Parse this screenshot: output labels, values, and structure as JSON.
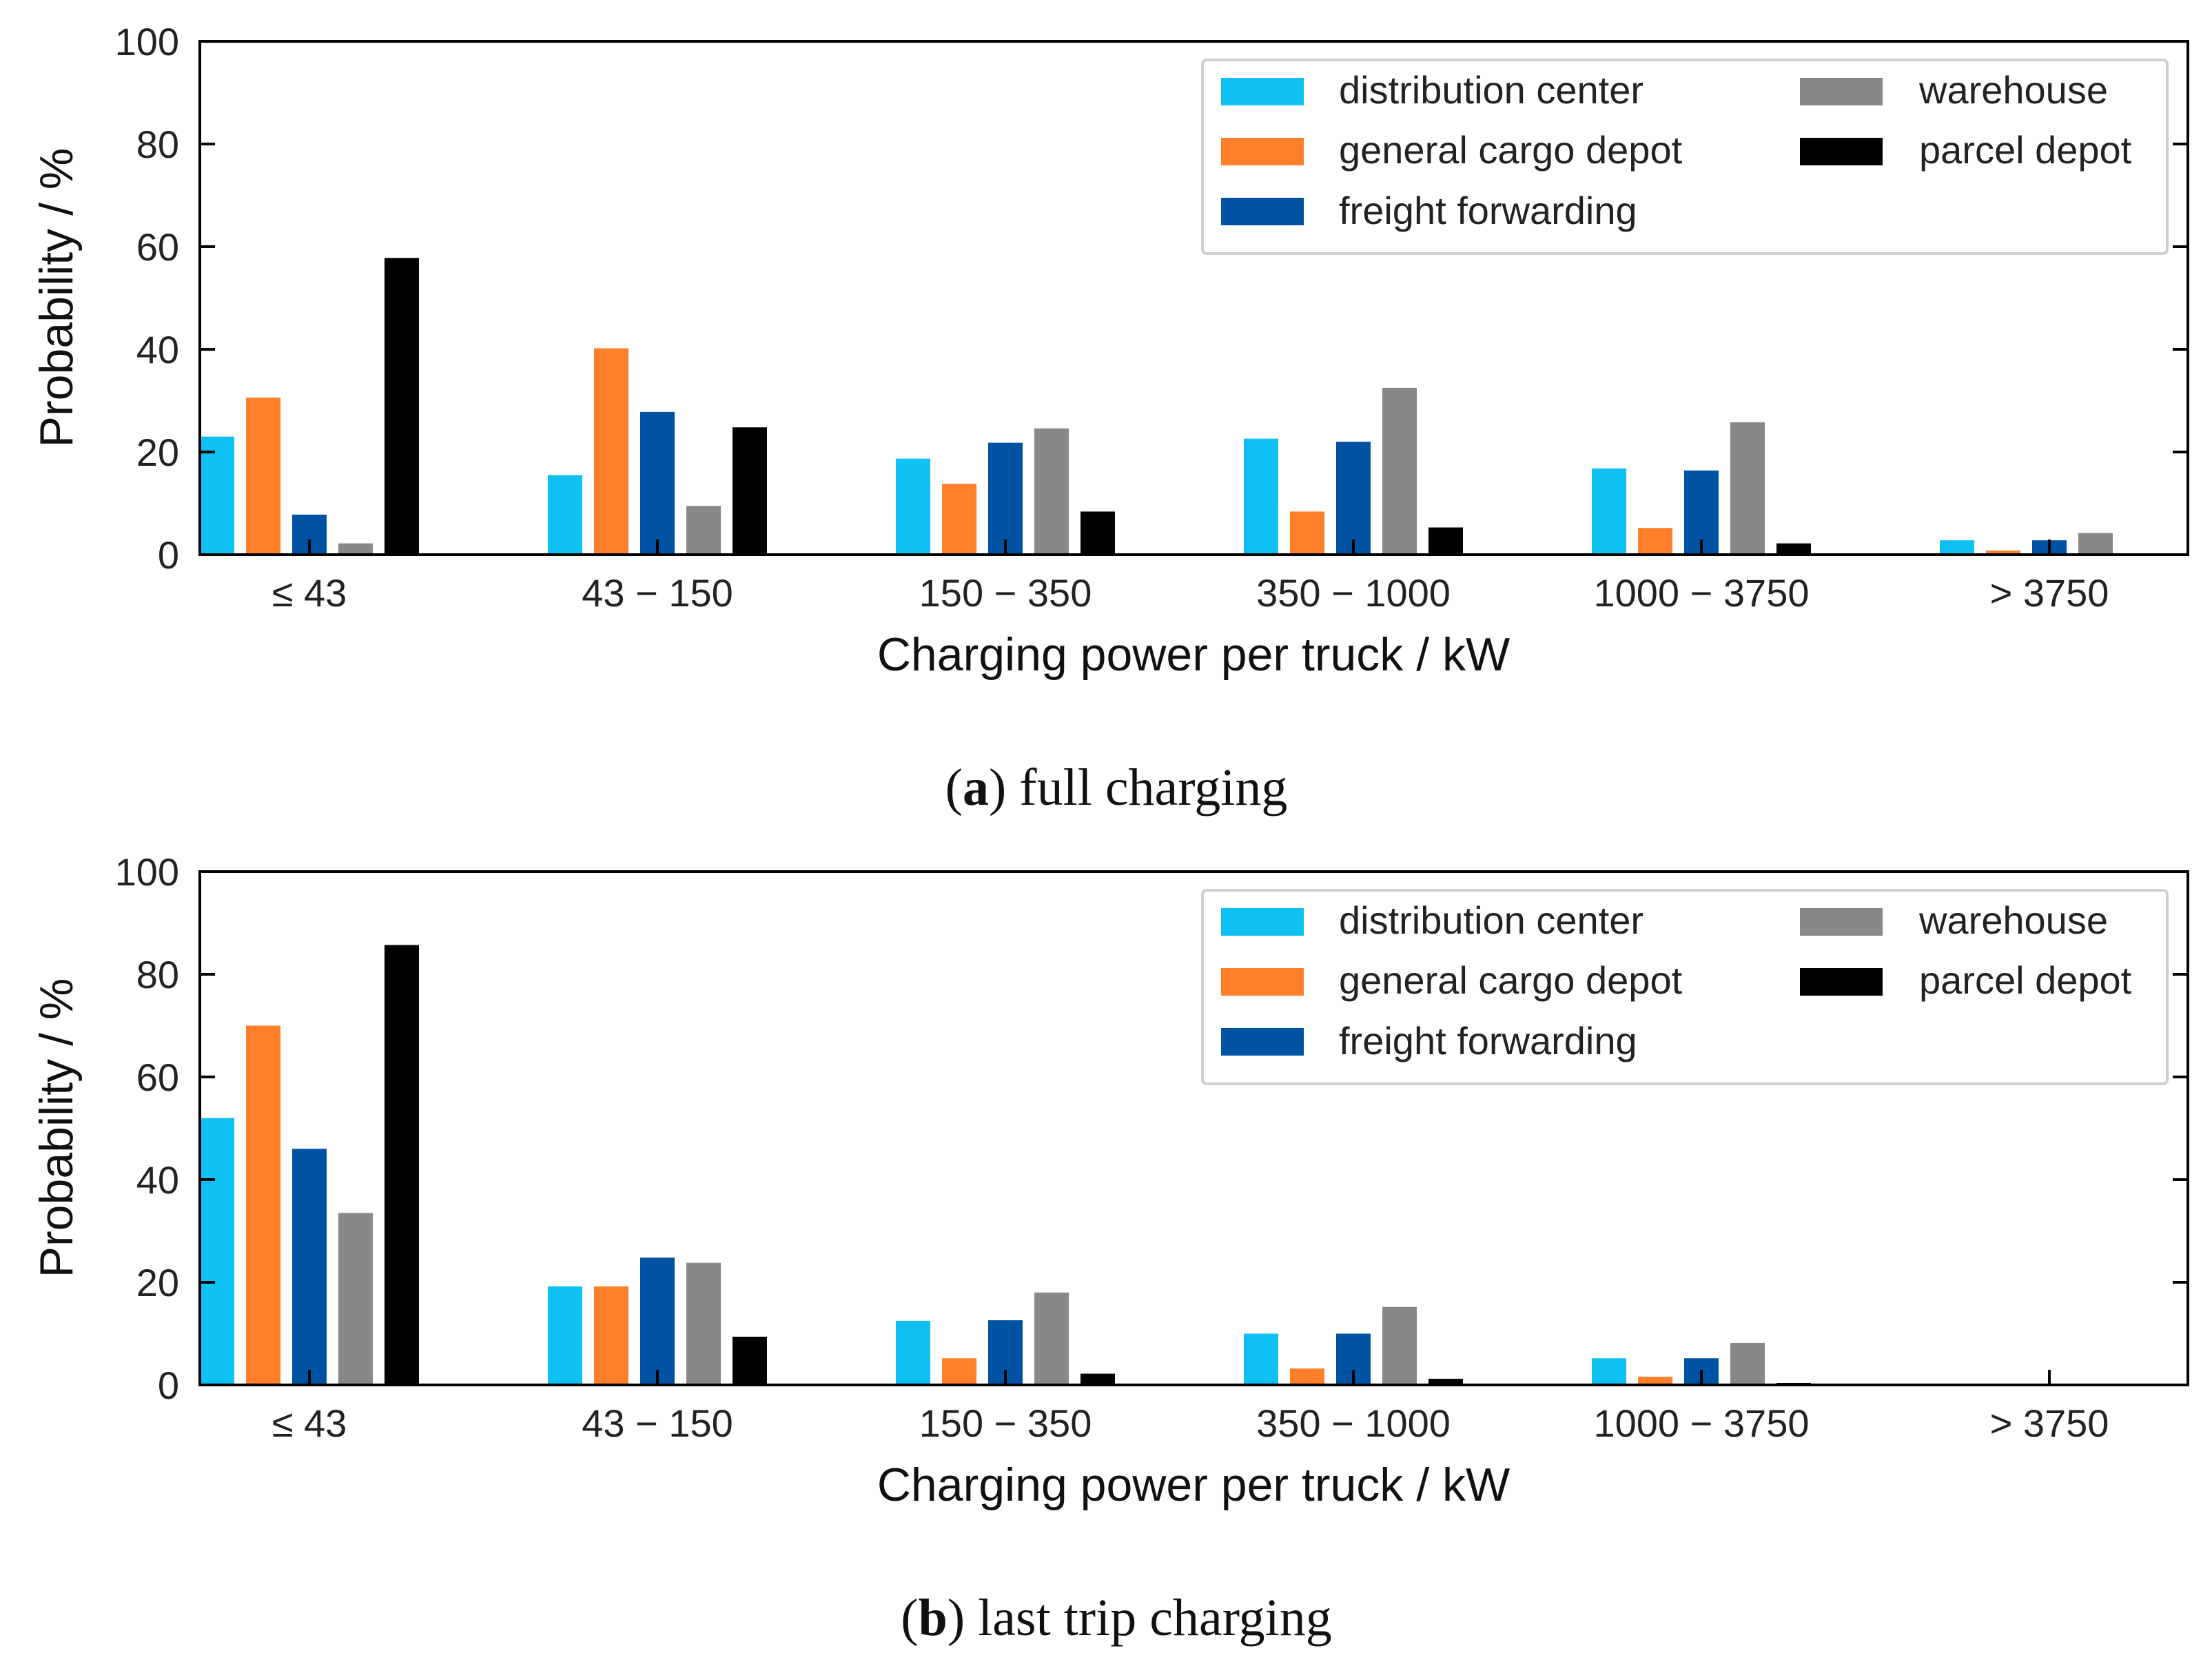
{
  "colors": {
    "distribution center": "#0fc0f2",
    "general cargo depot": "#ff7f2a",
    "freight forwarding": "#0052a3",
    "warehouse": "#888888",
    "parcel depot": "#000000"
  },
  "chart_data": [
    {
      "type": "bar",
      "title": "",
      "xlabel": "Charging power per truck / kW",
      "ylabel": "Probability / %",
      "ylim": [
        0,
        100
      ],
      "yticks": [
        "0",
        "20",
        "40",
        "60",
        "80",
        "100"
      ],
      "categories": [
        "≤ 43",
        "43 − 150",
        "150 − 350",
        "350 − 1000",
        "1000 − 3750",
        "> 3750"
      ],
      "series": [
        {
          "name": "distribution center",
          "values": [
            23,
            15.5,
            18.7,
            22.6,
            16.8,
            2.8
          ]
        },
        {
          "name": "general cargo depot",
          "values": [
            30.6,
            40.2,
            13.8,
            8.4,
            5.2,
            0.8
          ]
        },
        {
          "name": "freight forwarding",
          "values": [
            7.8,
            27.8,
            21.8,
            22,
            16.4,
            2.8
          ]
        },
        {
          "name": "warehouse",
          "values": [
            2.2,
            9.5,
            24.6,
            32.5,
            25.8,
            4.2
          ]
        },
        {
          "name": "parcel depot",
          "values": [
            57.8,
            24.8,
            8.4,
            5.3,
            2.2,
            0
          ]
        }
      ],
      "legend": {
        "position": "top-right",
        "columns": [
          [
            "distribution center",
            "general cargo depot",
            "freight forwarding"
          ],
          [
            "warehouse",
            "parcel depot"
          ]
        ]
      },
      "caption": {
        "label": "a",
        "text": "full charging"
      }
    },
    {
      "type": "bar",
      "title": "",
      "xlabel": "Charging power per truck / kW",
      "ylabel": "Probability / %",
      "ylim": [
        0,
        100
      ],
      "yticks": [
        "0",
        "20",
        "40",
        "60",
        "80",
        "100"
      ],
      "categories": [
        "≤ 43",
        "43 − 150",
        "150 − 350",
        "350 − 1000",
        "1000 − 3750",
        "> 3750"
      ],
      "series": [
        {
          "name": "distribution center",
          "values": [
            52,
            19.2,
            12.5,
            10,
            5.2,
            0
          ]
        },
        {
          "name": "general cargo depot",
          "values": [
            70,
            19.2,
            5.2,
            3.2,
            1.6,
            0
          ]
        },
        {
          "name": "freight forwarding",
          "values": [
            46,
            24.8,
            12.6,
            10,
            5.2,
            0
          ]
        },
        {
          "name": "warehouse",
          "values": [
            33.5,
            23.8,
            18,
            15.2,
            8.2,
            0
          ]
        },
        {
          "name": "parcel depot",
          "values": [
            85.7,
            9.4,
            2.2,
            1.2,
            0.4,
            0
          ]
        }
      ],
      "legend": {
        "position": "top-right",
        "columns": [
          [
            "distribution center",
            "general cargo depot",
            "freight forwarding"
          ],
          [
            "warehouse",
            "parcel depot"
          ]
        ]
      },
      "caption": {
        "label": "b",
        "text": "last trip charging"
      }
    }
  ]
}
